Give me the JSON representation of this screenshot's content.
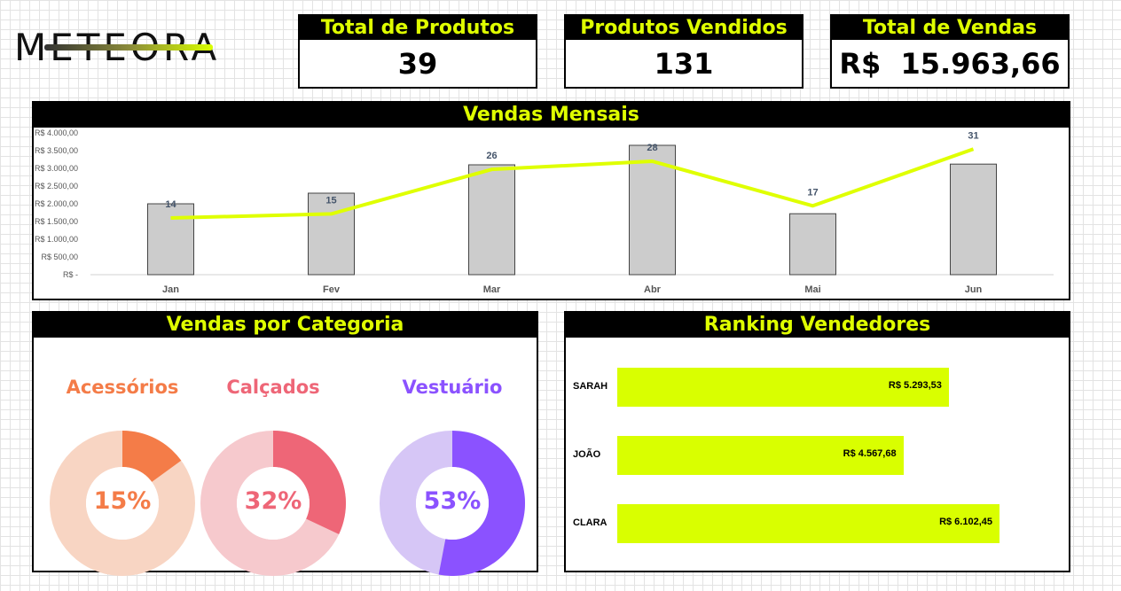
{
  "logo": {
    "text": "METEORA"
  },
  "kpis": [
    {
      "title": "Total de Produtos",
      "value": "39"
    },
    {
      "title": "Produtos Vendidos",
      "value": "131"
    },
    {
      "title": "Total de Vendas",
      "value": "R$  15.963,66"
    }
  ],
  "monthly": {
    "title": "Vendas Mensais"
  },
  "categories": {
    "title": "Vendas por Categoria",
    "items": [
      {
        "name": "Acessórios",
        "percent_label": "15%",
        "fraction": 0.15,
        "color": "#f47c48",
        "light": "#f8d5c3"
      },
      {
        "name": "Calçados",
        "percent_label": "32%",
        "fraction": 0.32,
        "color": "#ee6677",
        "light": "#f6c9cd"
      },
      {
        "name": "Vestuário",
        "percent_label": "53%",
        "fraction": 0.53,
        "color": "#8b52ff",
        "light": "#d6c6f6"
      }
    ]
  },
  "ranking": {
    "title": "Ranking Vendedores",
    "rows": [
      {
        "name": "SARAH",
        "value_label": "R$ 5.293,53",
        "value": 5293.53
      },
      {
        "name": "JOÃO",
        "value_label": "R$ 4.567,68",
        "value": 4567.68
      },
      {
        "name": "CLARA",
        "value_label": "R$ 6.102,45",
        "value": 6102.45
      }
    ]
  },
  "chart_data": {
    "type": "bar",
    "categories": [
      "Jan",
      "Fev",
      "Mar",
      "Abr",
      "Mai",
      "Jun"
    ],
    "values": [
      2000,
      2300,
      3100,
      3650,
      1720,
      3120
    ],
    "line_values": [
      14,
      15,
      26,
      28,
      17,
      31
    ],
    "line_labels": [
      "14",
      "15",
      "26",
      "28",
      "17",
      "31"
    ],
    "ylim": [
      0,
      4000
    ],
    "y_ticks": [
      "R$ -",
      "R$ 500,00",
      "R$ 1.000,00",
      "R$ 1.500,00",
      "R$ 2.000,00",
      "R$ 2.500,00",
      "R$ 3.000,00",
      "R$ 3.500,00",
      "R$ 4.000,00"
    ],
    "bar_color": "#cccccc",
    "line_color": "#dfff00",
    "title": "Vendas Mensais"
  }
}
